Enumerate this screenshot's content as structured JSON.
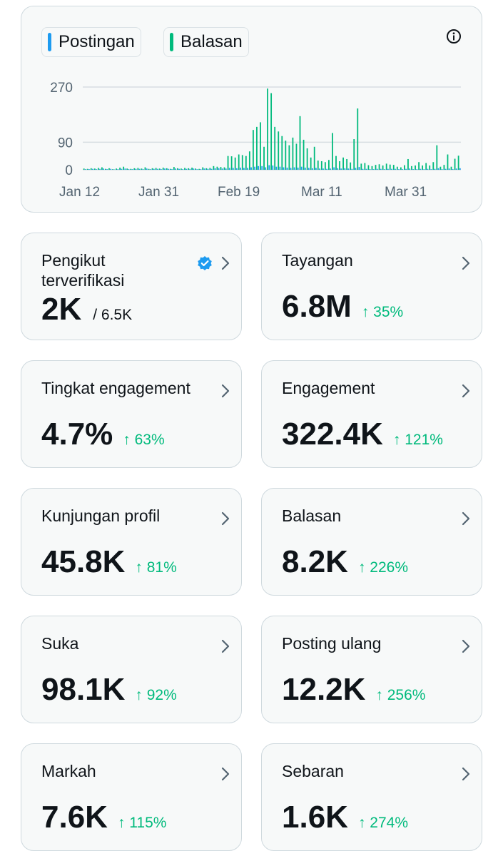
{
  "legend": {
    "posts_label": "Postingan",
    "replies_label": "Balasan",
    "posts_color": "#1d9bf0",
    "replies_color": "#00ba7c"
  },
  "chart_data": {
    "type": "bar",
    "title": "",
    "xlabel": "",
    "ylabel": "",
    "y_ticks": [
      "270",
      "90",
      "0"
    ],
    "x_ticks": [
      "Jan 12",
      "Jan 31",
      "Feb 19",
      "Mar 11",
      "Mar 31"
    ],
    "ylim": [
      0,
      270
    ],
    "grid": true,
    "legend_position": "top-left",
    "series": [
      {
        "name": "Balasan",
        "values": [
          4,
          3,
          5,
          4,
          6,
          8,
          3,
          5,
          2,
          4,
          7,
          10,
          4,
          3,
          5,
          6,
          4,
          8,
          3,
          5,
          6,
          4,
          7,
          5,
          3,
          9,
          5,
          4,
          6,
          5,
          7,
          4,
          3,
          8,
          5,
          6,
          12,
          10,
          9,
          8,
          45,
          44,
          40,
          50,
          48,
          45,
          60,
          130,
          140,
          155,
          75,
          265,
          250,
          140,
          125,
          110,
          95,
          80,
          105,
          85,
          175,
          98,
          70,
          40,
          75,
          30,
          28,
          25,
          32,
          120,
          45,
          28,
          40,
          35,
          24,
          100,
          200,
          20,
          22,
          15,
          12,
          16,
          18,
          14,
          20,
          17,
          16,
          10,
          8,
          15,
          35,
          12,
          14,
          25,
          14,
          22,
          14,
          25,
          80,
          10,
          16,
          50,
          10,
          36,
          46
        ]
      },
      {
        "name": "Postingan",
        "values": [
          2,
          2,
          3,
          2,
          3,
          4,
          2,
          3,
          1,
          2,
          3,
          4,
          2,
          2,
          3,
          3,
          2,
          4,
          2,
          3,
          3,
          2,
          4,
          3,
          2,
          4,
          3,
          2,
          3,
          3,
          4,
          2,
          2,
          4,
          3,
          3,
          5,
          5,
          4,
          4,
          6,
          6,
          5,
          7,
          6,
          6,
          8,
          10,
          12,
          12,
          8,
          15,
          14,
          10,
          10,
          8,
          7,
          6,
          8,
          7,
          10,
          7,
          6,
          5,
          6,
          4,
          4,
          3,
          4,
          8,
          5,
          4,
          5,
          4,
          3,
          6,
          9,
          3,
          3,
          2,
          2,
          3,
          3,
          2,
          3,
          3,
          3,
          2,
          2,
          3,
          4,
          2,
          2,
          3,
          2,
          3,
          2,
          3,
          5,
          2,
          3,
          4,
          2,
          4,
          5
        ]
      }
    ]
  },
  "stats": [
    {
      "title": "Pengikut terverifikasi",
      "value": "2K",
      "extra": "/ 6.5K",
      "change": "",
      "verified": true
    },
    {
      "title": "Tayangan",
      "value": "6.8M",
      "extra": "",
      "change": "↑ 35%"
    },
    {
      "title": "Tingkat engagement",
      "value": "4.7%",
      "extra": "",
      "change": "↑ 63%"
    },
    {
      "title": "Engagement",
      "value": "322.4K",
      "extra": "",
      "change": "↑ 121%"
    },
    {
      "title": "Kunjungan profil",
      "value": "45.8K",
      "extra": "",
      "change": "↑ 81%"
    },
    {
      "title": "Balasan",
      "value": "8.2K",
      "extra": "",
      "change": "↑ 226%"
    },
    {
      "title": "Suka",
      "value": "98.1K",
      "extra": "",
      "change": "↑ 92%"
    },
    {
      "title": "Posting ulang",
      "value": "12.2K",
      "extra": "",
      "change": "↑ 256%"
    },
    {
      "title": "Markah",
      "value": "7.6K",
      "extra": "",
      "change": "↑ 115%"
    },
    {
      "title": "Sebaran",
      "value": "1.6K",
      "extra": "",
      "change": "↑ 274%"
    }
  ],
  "icons": {
    "info": "info-icon",
    "chevron": "chevron-right-icon",
    "verified": "verified-badge-icon"
  }
}
